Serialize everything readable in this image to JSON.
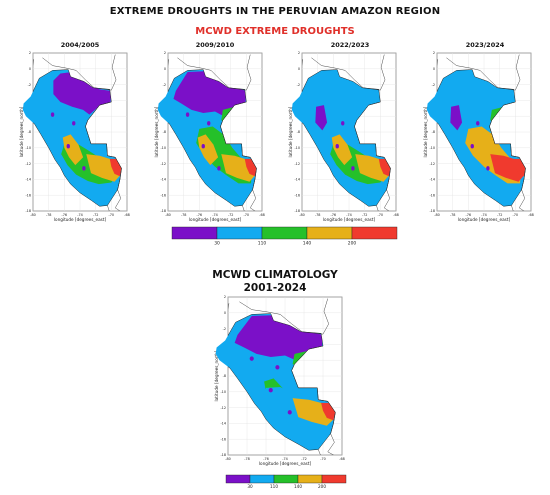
{
  "main_title": "EXTREME DROUGHTS IN THE PERUVIAN AMAZON REGION",
  "subtitle": "MCWD  EXTREME DROUGHTS",
  "climatology_title_line1": "MCWD  CLIMATOLOGY",
  "climatology_title_line2": "2001-2024",
  "axis": {
    "xlabel": "longitude [degrees_east]",
    "ylabel": "latitude [degrees_north]",
    "x_ticks": [
      "-80",
      "-78",
      "-76",
      "-74",
      "-72",
      "-70",
      "-68"
    ],
    "y_ticks": [
      "2",
      "0",
      "-2",
      "-4",
      "-6",
      "-8",
      "-10",
      "-12",
      "-14",
      "-16",
      "-18"
    ],
    "xlim": [
      -80,
      -68
    ],
    "ylim": [
      -18,
      2
    ]
  },
  "panels": [
    {
      "title": "2004/2005"
    },
    {
      "title": "2009/2010"
    },
    {
      "title": "2022/2023"
    },
    {
      "title": "2023/2024"
    }
  ],
  "colorbar": {
    "colors": [
      "#7b10c8",
      "#12aaf0",
      "#25c02a",
      "#e6b019",
      "#f03a2e"
    ],
    "tick_labels": [
      "30",
      "110",
      "140",
      "200"
    ]
  }
}
